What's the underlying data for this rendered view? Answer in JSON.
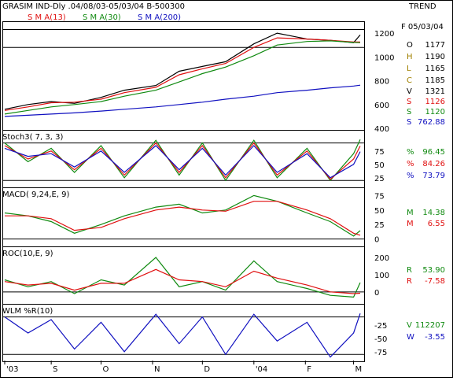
{
  "header": {
    "title": "GRASIM IND-Dly .04/08/03-05/03/04  B-500300",
    "trend": "TREND",
    "legend": [
      {
        "label": "S M A(13)",
        "color": "#e01010"
      },
      {
        "label": "S M A(30)",
        "color": "#108a10"
      },
      {
        "label": "S M A(200)",
        "color": "#1010c0"
      }
    ]
  },
  "date_axis": {
    "labels": [
      "'03",
      "S",
      "O",
      "N",
      "D",
      "'04",
      "F",
      "M"
    ]
  },
  "readouts": {
    "price": {
      "date": "F 05/03/04",
      "rows": [
        {
          "k": "O",
          "v": "1177",
          "kc": "#000000",
          "vc": "#000000"
        },
        {
          "k": "H",
          "v": "1190",
          "kc": "#a08000",
          "vc": "#000000"
        },
        {
          "k": "L",
          "v": "1165",
          "kc": "#a08000",
          "vc": "#000000"
        },
        {
          "k": "C",
          "v": "1185",
          "kc": "#a08000",
          "vc": "#000000"
        },
        {
          "k": "V",
          "v": "1321",
          "kc": "#000000",
          "vc": "#000000"
        },
        {
          "k": "S",
          "v": "1126",
          "kc": "#e01010",
          "vc": "#e01010"
        },
        {
          "k": "S",
          "v": "1120",
          "kc": "#108a10",
          "vc": "#108a10"
        },
        {
          "k": "S",
          "v": "762.88",
          "kc": "#1010c0",
          "vc": "#1010c0"
        }
      ]
    },
    "stoch": [
      {
        "k": "%",
        "v": "96.45",
        "c": "#108a10"
      },
      {
        "k": "%",
        "v": "84.26",
        "c": "#e01010"
      },
      {
        "k": "%",
        "v": "73.79",
        "c": "#1010c0"
      }
    ],
    "macd": [
      {
        "k": "M",
        "v": "14.38",
        "c": "#108a10"
      },
      {
        "k": "M",
        "v": "6.55",
        "c": "#e01010"
      }
    ],
    "roc": [
      {
        "k": "R",
        "v": "53.90",
        "c": "#108a10"
      },
      {
        "k": "R",
        "v": "-7.58",
        "c": "#e01010"
      }
    ],
    "wlm": [
      {
        "k": "V",
        "v": "112207",
        "c": "#108a10"
      },
      {
        "k": "W",
        "v": "-3.55",
        "c": "#1010c0"
      }
    ]
  },
  "chart_data": [
    {
      "type": "line",
      "title": "",
      "ylim": [
        400,
        1280
      ],
      "yticks": [
        1200,
        1000,
        800,
        600,
        400
      ],
      "annotation_lines": [
        1230,
        1080
      ],
      "x": [
        "2003-08-04",
        "2003-08-18",
        "2003-09-01",
        "2003-09-15",
        "2003-10-01",
        "2003-10-15",
        "2003-11-03",
        "2003-11-17",
        "2003-12-01",
        "2003-12-15",
        "2004-01-01",
        "2004-01-15",
        "2004-02-02",
        "2004-02-16",
        "2004-03-01",
        "2004-03-05"
      ],
      "series": [
        {
          "name": "Price",
          "color": "#000000",
          "values": [
            560,
            600,
            625,
            610,
            660,
            720,
            760,
            880,
            920,
            960,
            1110,
            1200,
            1150,
            1140,
            1120,
            1185
          ]
        },
        {
          "name": "S M A(13)",
          "color": "#e01010",
          "values": [
            550,
            580,
            615,
            620,
            645,
            700,
            745,
            850,
            900,
            945,
            1080,
            1160,
            1150,
            1140,
            1126,
            1126
          ]
        },
        {
          "name": "S M A(30)",
          "color": "#108a10",
          "values": [
            520,
            550,
            580,
            600,
            625,
            670,
            720,
            790,
            860,
            915,
            1010,
            1100,
            1130,
            1135,
            1122,
            1120
          ]
        },
        {
          "name": "S M A(200)",
          "color": "#1010c0",
          "values": [
            500,
            510,
            520,
            530,
            545,
            560,
            580,
            600,
            620,
            645,
            670,
            700,
            720,
            740,
            755,
            762.88
          ]
        }
      ]
    },
    {
      "type": "line",
      "title": "Stoch3( 7, 3, 3)",
      "ylim": [
        10,
        110
      ],
      "yticks": [
        75,
        50,
        25
      ],
      "annotation_lines": [
        90,
        20
      ],
      "x": [
        "2003-08-04",
        "2003-08-18",
        "2003-09-01",
        "2003-09-15",
        "2003-10-01",
        "2003-10-15",
        "2003-11-03",
        "2003-11-17",
        "2003-12-01",
        "2003-12-15",
        "2004-01-01",
        "2004-01-15",
        "2004-02-02",
        "2004-02-16",
        "2004-03-01",
        "2004-03-05"
      ],
      "series": [
        {
          "name": "%K",
          "color": "#108a10",
          "values": [
            90,
            55,
            80,
            35,
            85,
            25,
            95,
            30,
            90,
            20,
            95,
            25,
            80,
            20,
            70,
            96.45
          ]
        },
        {
          "name": "%D",
          "color": "#e01010",
          "values": [
            85,
            60,
            75,
            40,
            80,
            30,
            90,
            35,
            85,
            25,
            90,
            30,
            75,
            22,
            60,
            84.26
          ]
        },
        {
          "name": "%SD",
          "color": "#1010c0",
          "values": [
            80,
            65,
            70,
            45,
            75,
            35,
            85,
            40,
            80,
            30,
            85,
            35,
            70,
            25,
            50,
            73.79
          ]
        }
      ]
    },
    {
      "type": "line",
      "title": "MACD( 9,24,E, 9)",
      "ylim": [
        -10,
        85
      ],
      "yticks": [
        75,
        50,
        25,
        0
      ],
      "annotation_lines": [
        0
      ],
      "x": [
        "2003-08-04",
        "2003-08-18",
        "2003-09-01",
        "2003-09-15",
        "2003-10-01",
        "2003-10-15",
        "2003-11-03",
        "2003-11-17",
        "2003-12-01",
        "2003-12-15",
        "2004-01-01",
        "2004-01-15",
        "2004-02-02",
        "2004-02-16",
        "2004-03-01",
        "2004-03-05"
      ],
      "series": [
        {
          "name": "MACD",
          "color": "#108a10",
          "values": [
            45,
            40,
            30,
            10,
            25,
            40,
            55,
            60,
            45,
            50,
            75,
            65,
            45,
            30,
            5,
            14.38
          ]
        },
        {
          "name": "Signal",
          "color": "#e01010",
          "values": [
            40,
            40,
            35,
            15,
            20,
            35,
            50,
            55,
            50,
            48,
            65,
            65,
            50,
            35,
            10,
            6.55
          ]
        }
      ]
    },
    {
      "type": "line",
      "title": "ROC(10,E, 9)",
      "ylim": [
        -60,
        250
      ],
      "yticks": [
        200,
        100,
        0
      ],
      "annotation_lines": [
        0
      ],
      "x": [
        "2003-08-04",
        "2003-08-18",
        "2003-09-01",
        "2003-09-15",
        "2003-10-01",
        "2003-10-15",
        "2003-11-03",
        "2003-11-17",
        "2003-12-01",
        "2003-12-15",
        "2004-01-01",
        "2004-01-15",
        "2004-02-02",
        "2004-02-16",
        "2004-03-01",
        "2004-03-05"
      ],
      "series": [
        {
          "name": "ROC",
          "color": "#108a10",
          "values": [
            70,
            30,
            60,
            -10,
            70,
            40,
            200,
            30,
            60,
            10,
            180,
            60,
            20,
            -20,
            -30,
            53.9
          ]
        },
        {
          "name": "Signal",
          "color": "#e01010",
          "values": [
            60,
            40,
            50,
            10,
            50,
            50,
            130,
            70,
            60,
            30,
            120,
            80,
            40,
            0,
            -10,
            -7.58
          ]
        }
      ]
    },
    {
      "type": "line",
      "title": "WLM %R(10)",
      "ylim": [
        -90,
        10
      ],
      "yticks": [
        -25,
        -50,
        -75
      ],
      "annotation_lines": [
        -10,
        -80
      ],
      "x": [
        "2003-08-04",
        "2003-08-18",
        "2003-09-01",
        "2003-09-15",
        "2003-10-01",
        "2003-10-15",
        "2003-11-03",
        "2003-11-17",
        "2003-12-01",
        "2003-12-15",
        "2004-01-01",
        "2004-01-15",
        "2004-02-02",
        "2004-02-16",
        "2004-03-01",
        "2004-03-05"
      ],
      "series": [
        {
          "name": "%R",
          "color": "#1010c0",
          "values": [
            -10,
            -40,
            -15,
            -70,
            -20,
            -75,
            -5,
            -60,
            -10,
            -80,
            -5,
            -55,
            -20,
            -85,
            -40,
            -3.55
          ]
        }
      ]
    }
  ]
}
